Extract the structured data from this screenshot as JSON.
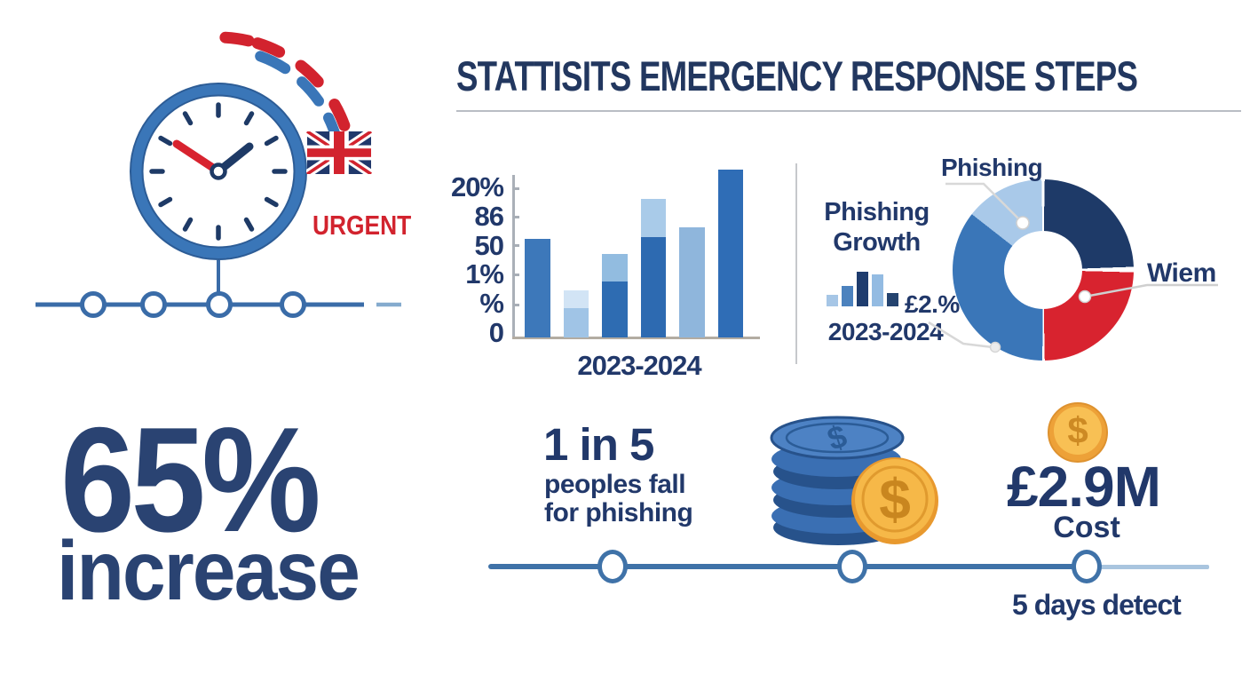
{
  "header": {
    "title": "STATTISITS EMERGENCY RESPONSE STEPS"
  },
  "hero": {
    "urgent_label": "URGENT",
    "flag_name": "uk-flag"
  },
  "chart_data": [
    {
      "type": "bar",
      "title": "",
      "xlabel": "2023-2024",
      "ylabel": "",
      "y_tick_labels": [
        "20%",
        "86",
        "50",
        "1%",
        "%",
        "0"
      ],
      "ylim": [
        0,
        100
      ],
      "grid": false,
      "bars": [
        {
          "segments": [
            {
              "pct": 59,
              "color": "#3d78ba"
            }
          ]
        },
        {
          "segments": [
            {
              "pct": 17.5,
              "color": "#a0c4e6"
            },
            {
              "pct": 10.5,
              "color": "#d2e4f5"
            }
          ]
        },
        {
          "segments": [
            {
              "pct": 33.5,
              "color": "#2e6cb2"
            },
            {
              "pct": 16,
              "color": "#92bce0"
            }
          ]
        },
        {
          "segments": [
            {
              "pct": 60,
              "color": "#2d6ab1"
            },
            {
              "pct": 22.5,
              "color": "#a9cbe9"
            }
          ]
        },
        {
          "segments": [
            {
              "pct": 65.5,
              "color": "#8fb6dc"
            }
          ]
        },
        {
          "segments": [
            {
              "pct": 100,
              "color": "#2f6db6"
            }
          ]
        }
      ]
    },
    {
      "type": "bar",
      "title": "Phishing Growth",
      "xlabel": "2023-2024",
      "annotation": "£2.%",
      "bars": [
        {
          "segments": [
            {
              "pct": 32,
              "color": "#a6c6e6"
            }
          ]
        },
        {
          "segments": [
            {
              "pct": 56,
              "color": "#4c82be"
            }
          ]
        },
        {
          "segments": [
            {
              "pct": 95,
              "color": "#1e3c6e"
            }
          ]
        },
        {
          "segments": [
            {
              "pct": 88,
              "color": "#93bbe2"
            }
          ]
        },
        {
          "segments": [
            {
              "pct": 37,
              "color": "#24436f"
            }
          ]
        }
      ]
    },
    {
      "type": "donut",
      "labels": {
        "top": "Phishing",
        "right": "Wiem",
        "left": "£2.%"
      },
      "segments": [
        {
          "color": "#ffffff",
          "from": 0,
          "to": 1,
          "seam": true
        },
        {
          "color": "#1e3a68",
          "from": 1,
          "to": 88,
          "label": ""
        },
        {
          "color": "#ffffff",
          "from": 88,
          "to": 91.5,
          "seam": true
        },
        {
          "color": "#d8232f",
          "from": 91.5,
          "to": 179,
          "label": "Wiem"
        },
        {
          "color": "#ffffff",
          "from": 179,
          "to": 180.5,
          "seam": true
        },
        {
          "color": "#3a76b8",
          "from": 180.5,
          "to": 308,
          "label": "£2.%"
        },
        {
          "color": "#a9c9e9",
          "from": 308,
          "to": 359,
          "label": "Phishing"
        },
        {
          "color": "#ffffff",
          "from": 359,
          "to": 360,
          "seam": true
        }
      ]
    }
  ],
  "stats": {
    "increase_value": "65%",
    "increase_label": "increase",
    "one_in_five_value": "1 in 5",
    "one_in_five_line1": "peoples fall",
    "one_in_five_line2": "for phishing",
    "cost_value": "£2.9M",
    "cost_label": "Cost",
    "detect_label": "5 days detect"
  },
  "icons": {
    "dollar_sign": "$"
  },
  "colors": {
    "navy": "#21386a",
    "blue": "#3a76b8",
    "light_blue": "#a9c9e9",
    "red": "#d2232e",
    "gold": "#f2a93b"
  }
}
